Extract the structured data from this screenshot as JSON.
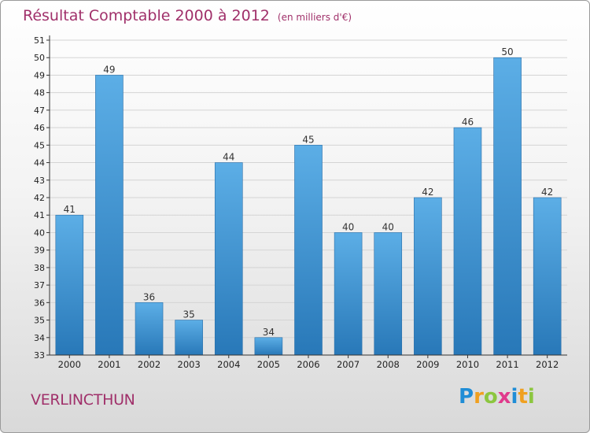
{
  "title": "Résultat Comptable 2000 à 2012",
  "subtitle": "(en milliers d'€)",
  "commune": "VERLINCTHUN",
  "logo": {
    "letters": [
      {
        "char": "P",
        "color": "#1f8dd6"
      },
      {
        "char": "r",
        "color": "#f0a020"
      },
      {
        "char": "o",
        "color": "#8cc63f"
      },
      {
        "char": "x",
        "color": "#e03a8c"
      },
      {
        "char": "i",
        "color": "#1f8dd6"
      },
      {
        "char": "t",
        "color": "#f0a020"
      },
      {
        "char": "i",
        "color": "#8cc63f"
      }
    ]
  },
  "colors": {
    "title": "#a0306a",
    "bar_top": "#5caee6",
    "bar_bottom": "#2878b8",
    "grid": "#d4d4d4",
    "axis": "#333333"
  },
  "chart_data": {
    "type": "bar",
    "title": "Résultat Comptable 2000 à 2012",
    "subtitle": "(en milliers d'€)",
    "categories": [
      "2000",
      "2001",
      "2002",
      "2003",
      "2004",
      "2005",
      "2006",
      "2007",
      "2008",
      "2009",
      "2010",
      "2011",
      "2012"
    ],
    "values": [
      41,
      49,
      36,
      35,
      44,
      34,
      45,
      40,
      40,
      42,
      46,
      50,
      42
    ],
    "xlabel": "",
    "ylabel": "",
    "ylim": [
      33,
      51
    ],
    "yticks": [
      33,
      34,
      35,
      36,
      37,
      38,
      39,
      40,
      41,
      42,
      43,
      44,
      45,
      46,
      47,
      48,
      49,
      50,
      51
    ],
    "grid": true,
    "data_labels": true
  }
}
